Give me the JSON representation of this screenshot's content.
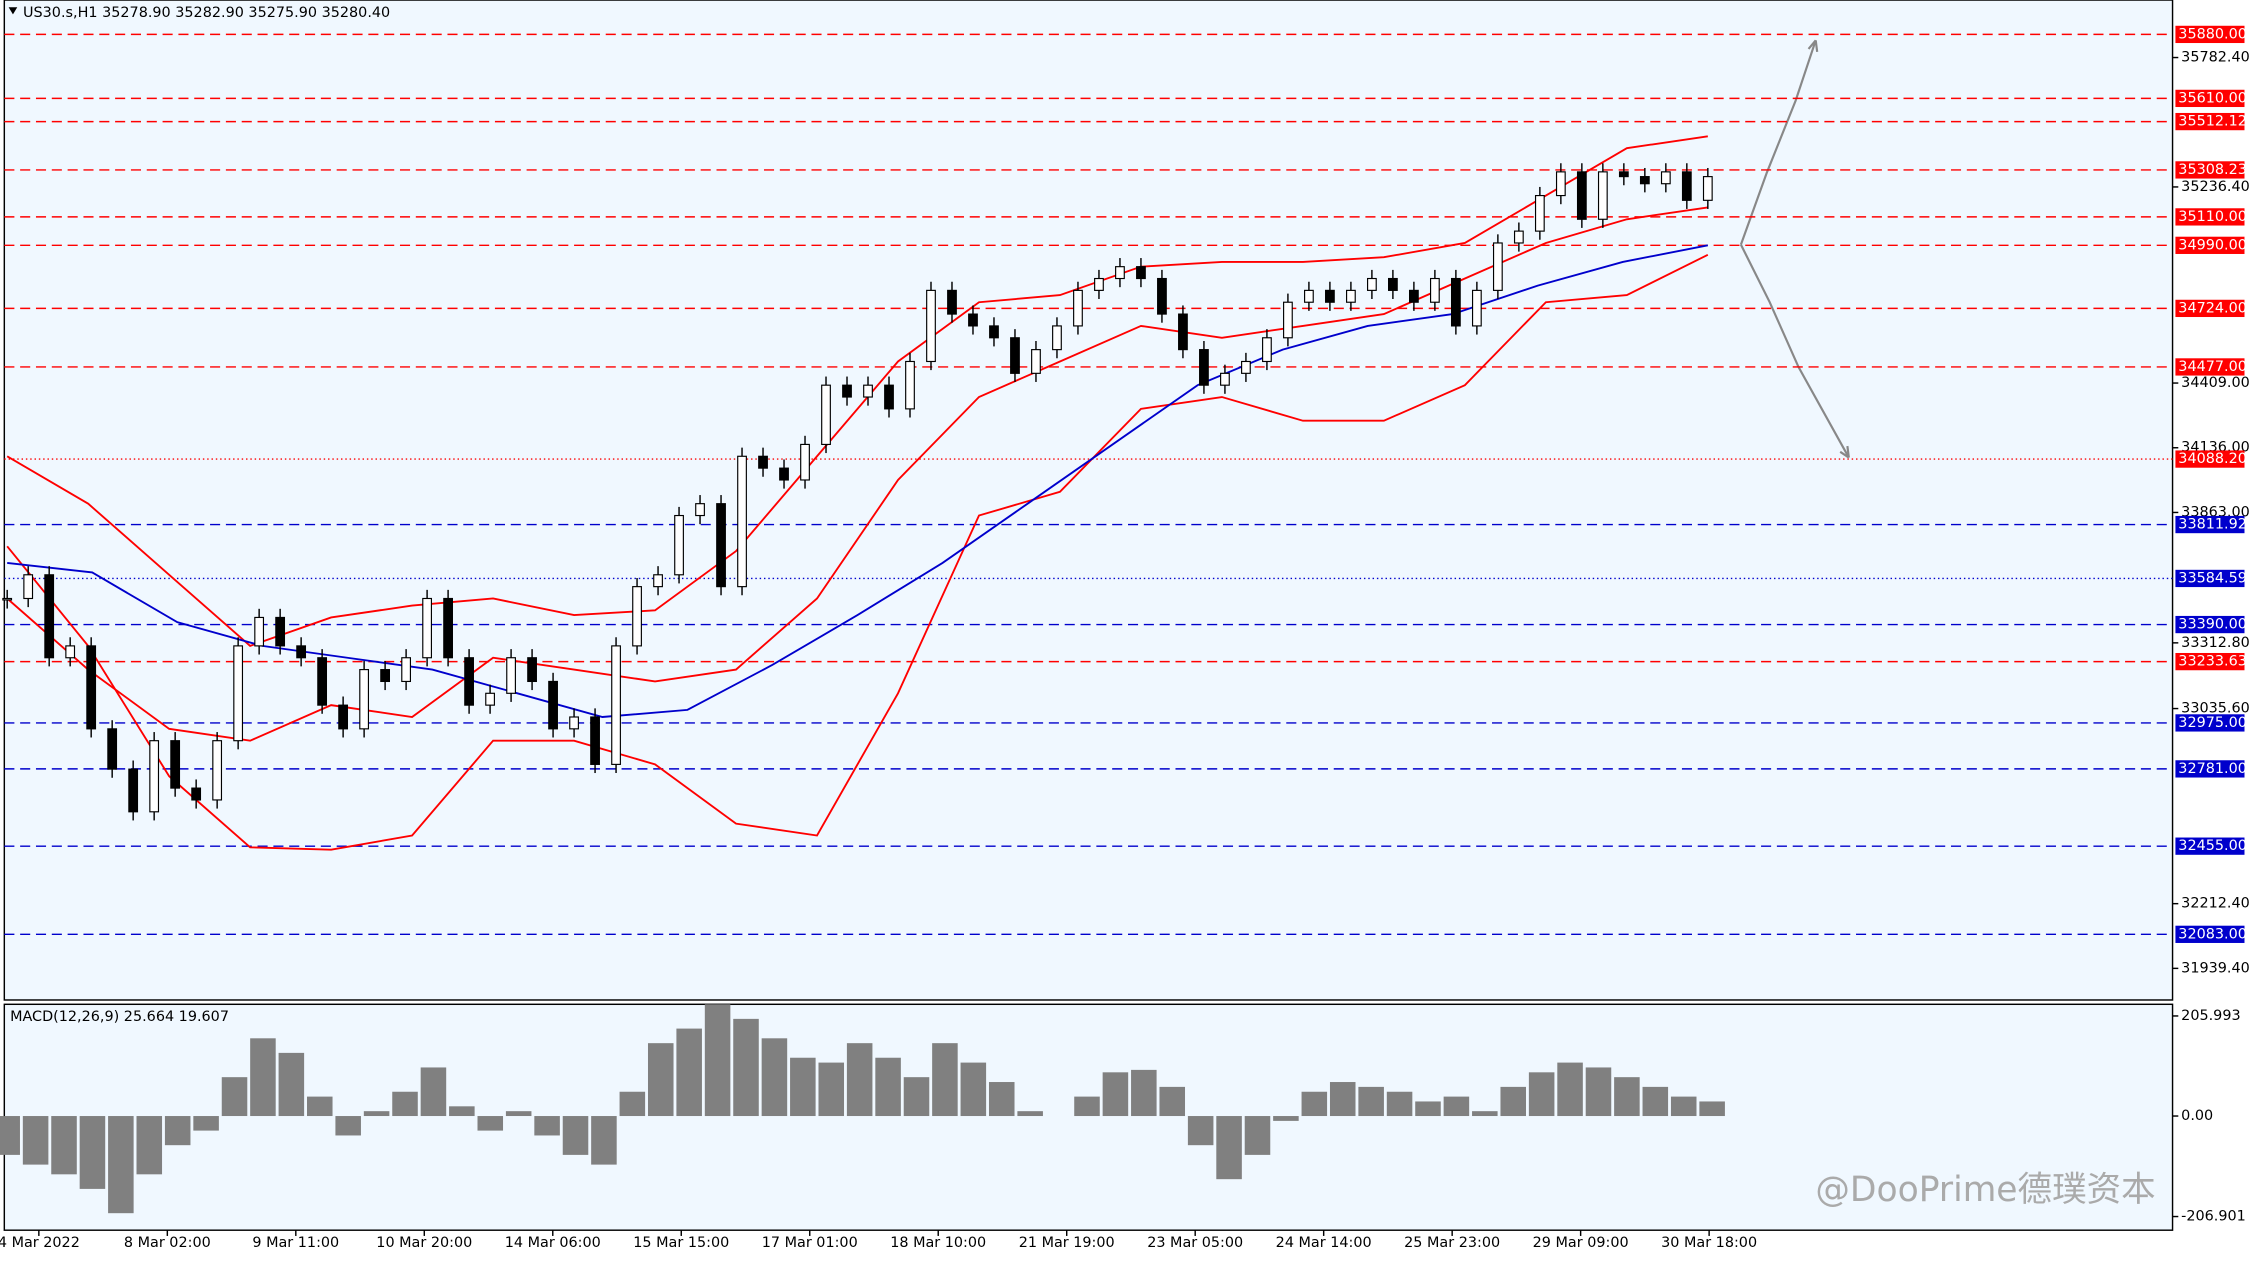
{
  "chart_data": {
    "type": "candlestick",
    "title": "US30.s,H1  35278.90 35282.90 35275.90 35280.40",
    "watermark": "@DooPrime德璞资本",
    "categories": [
      "4 Mar 2022",
      "8 Mar 02:00",
      "9 Mar 11:00",
      "10 Mar 20:00",
      "14 Mar 06:00",
      "15 Mar 15:00",
      "17 Mar 01:00",
      "18 Mar 10:00",
      "21 Mar 19:00",
      "23 Mar 05:00",
      "24 Mar 14:00",
      "25 Mar 23:00",
      "29 Mar 09:00",
      "30 Mar 18:00"
    ],
    "ylim": [
      31806,
      36025
    ],
    "yticks": [
      {
        "value": 35782.4,
        "label": "35782.40"
      },
      {
        "value": 35236.4,
        "label": "35236.40"
      },
      {
        "value": 34409,
        "label": "34409.00"
      },
      {
        "value": 34136,
        "label": "34136.00"
      },
      {
        "value": 33863,
        "label": "33863.00"
      },
      {
        "value": 33312.8,
        "label": "33312.80"
      },
      {
        "value": 33035.6,
        "label": "33035.60"
      },
      {
        "value": 32212.4,
        "label": "32212.40"
      },
      {
        "value": 31939.4,
        "label": "31939.40"
      }
    ],
    "closes": [
      33500,
      33600,
      33250,
      33300,
      32950,
      32780,
      32600,
      32900,
      32700,
      32650,
      32900,
      33300,
      33420,
      33300,
      33250,
      33050,
      32950,
      33200,
      33150,
      33250,
      33500,
      33250,
      33050,
      33100,
      33250,
      33150,
      32950,
      33000,
      32800,
      33300,
      33550,
      33600,
      33850,
      33900,
      33550,
      34100,
      34050,
      34000,
      34150,
      34400,
      34350,
      34400,
      34300,
      34500,
      34800,
      34700,
      34650,
      34600,
      34450,
      34550,
      34650,
      34800,
      34850,
      34900,
      34850,
      34700,
      34550,
      34400,
      34450,
      34500,
      34600,
      34750,
      34800,
      34750,
      34800,
      34850,
      34800,
      34750,
      34850,
      34650,
      34800,
      35000,
      35050,
      35200,
      35300,
      35100,
      35300,
      35280,
      35250,
      35300,
      35180,
      35280
    ],
    "candle_color": "#000000",
    "overlays": [
      {
        "color": "#ff0000",
        "values": [
          34100,
          33900,
          33600,
          33300,
          33420,
          33470,
          33500,
          33430,
          33450,
          33700,
          34100,
          34500,
          34750,
          34780,
          34900,
          34920,
          34920,
          34940,
          35000,
          35200,
          35400,
          35450
        ]
      },
      {
        "color": "#ff0000",
        "values": [
          33500,
          33200,
          32950,
          32900,
          33050,
          33000,
          33250,
          33200,
          33150,
          33200,
          33500,
          34000,
          34350,
          34500,
          34650,
          34600,
          34650,
          34700,
          34850,
          35000,
          35100,
          35150
        ]
      },
      {
        "color": "#ff0000",
        "values": [
          33720,
          33300,
          32750,
          32450,
          32440,
          32500,
          32900,
          32900,
          32800,
          32550,
          32500,
          33100,
          33850,
          33950,
          34300,
          34350,
          34250,
          34250,
          34400,
          34750,
          34780,
          34950
        ]
      },
      {
        "color": "#0000cc",
        "values": [
          33650,
          33610,
          33400,
          33300,
          33250,
          33200,
          33100,
          33000,
          33030,
          33220,
          33430,
          33650,
          33900,
          34150,
          34400,
          34550,
          34650,
          34700,
          34820,
          34920,
          34990
        ]
      }
    ],
    "levels": [
      {
        "value": 35880,
        "label": "35880.00",
        "color": "#ff0000",
        "dash": "dashed"
      },
      {
        "value": 35610,
        "label": "35610.00",
        "color": "#ff0000",
        "dash": "dashed"
      },
      {
        "value": 35512.12,
        "label": "35512.12",
        "color": "#ff0000",
        "dash": "dashed"
      },
      {
        "value": 35308.23,
        "label": "35308.23",
        "color": "#ff0000",
        "dash": "dashed"
      },
      {
        "value": 35110,
        "label": "35110.00",
        "color": "#ff0000",
        "dash": "dashed"
      },
      {
        "value": 34990,
        "label": "34990.00",
        "color": "#ff0000",
        "dash": "dashed"
      },
      {
        "value": 34724,
        "label": "34724.00",
        "color": "#ff0000",
        "dash": "dashed"
      },
      {
        "value": 34477,
        "label": "34477.00",
        "color": "#ff0000",
        "dash": "dashed"
      },
      {
        "value": 34088.2,
        "label": "34088.20",
        "color": "#ff0000",
        "dash": "dotted"
      },
      {
        "value": 33811.92,
        "label": "33811.92",
        "color": "#0000cc",
        "dash": "dashed"
      },
      {
        "value": 33584.59,
        "label": "33584.59",
        "color": "#0000cc",
        "dash": "dotted"
      },
      {
        "value": 33390,
        "label": "33390.00",
        "color": "#0000cc",
        "dash": "dashed"
      },
      {
        "value": 33233.63,
        "label": "33233.63",
        "color": "#ff0000",
        "dash": "dashed"
      },
      {
        "value": 32975,
        "label": "32975.00",
        "color": "#0000cc",
        "dash": "dashed"
      },
      {
        "value": 32781,
        "label": "32781.00",
        "color": "#0000cc",
        "dash": "dashed"
      },
      {
        "value": 32455,
        "label": "32455.00",
        "color": "#0000cc",
        "dash": "dashed"
      },
      {
        "value": 32083,
        "label": "32083.00",
        "color": "#0000cc",
        "dash": "dashed"
      }
    ],
    "macd": {
      "label": "MACD(12,26,9) 25.664 19.607",
      "color": "#808080",
      "ylim": [
        -235,
        230
      ],
      "yticks": [
        {
          "value": 205.993,
          "label": "205.993"
        },
        {
          "value": 0,
          "label": "0.00"
        },
        {
          "value": -206.901,
          "label": "-206.901"
        }
      ],
      "values": [
        -80,
        -100,
        -120,
        -150,
        -200,
        -120,
        -60,
        -30,
        80,
        160,
        130,
        40,
        -40,
        10,
        50,
        100,
        20,
        -30,
        10,
        -40,
        -80,
        -100,
        50,
        150,
        180,
        230,
        200,
        160,
        120,
        110,
        150,
        120,
        80,
        150,
        110,
        70,
        10,
        0,
        40,
        90,
        95,
        60,
        -60,
        -130,
        -80,
        -10,
        50,
        70,
        60,
        50,
        30,
        40,
        10,
        60,
        90,
        110,
        100,
        80,
        60,
        40,
        30
      ]
    }
  }
}
